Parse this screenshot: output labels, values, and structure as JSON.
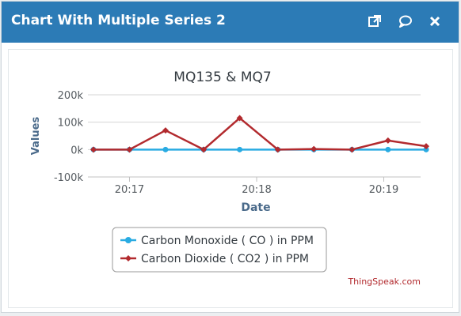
{
  "window": {
    "title": "Chart With Multiple Series 2"
  },
  "toolbar": {
    "icons": [
      "external-link-icon",
      "comment-icon",
      "close-icon"
    ]
  },
  "chart_data": {
    "type": "line",
    "title": "MQ135 & MQ7",
    "xlabel": "Date",
    "ylabel": "Values",
    "ylim": [
      -100000,
      200000
    ],
    "yticks": [
      -100000,
      0,
      100000,
      200000
    ],
    "ytick_labels": [
      "-100k",
      "0k",
      "100k",
      "200k"
    ],
    "xticks": [
      "20:17",
      "20:18",
      "20:19"
    ],
    "grid": true,
    "legend_position": "bottom-left",
    "series": [
      {
        "name": "Carbon Monoxide ( CO ) in PPM",
        "color": "#29abe2",
        "marker": "circle",
        "x": [
          "20:16:43",
          "20:17:00",
          "20:17:17",
          "20:17:35",
          "20:17:52",
          "20:18:10",
          "20:18:27",
          "20:18:45",
          "20:19:02",
          "20:19:20"
        ],
        "y": [
          0,
          0,
          0,
          0,
          0,
          0,
          0,
          0,
          0,
          0
        ]
      },
      {
        "name": "Carbon Dioxide ( CO2 ) in PPM",
        "color": "#b22a2e",
        "marker": "diamond",
        "x": [
          "20:16:43",
          "20:17:00",
          "20:17:17",
          "20:17:35",
          "20:17:52",
          "20:18:10",
          "20:18:27",
          "20:18:45",
          "20:19:02",
          "20:19:20"
        ],
        "y": [
          0,
          0,
          70000,
          0,
          115000,
          0,
          2000,
          0,
          33000,
          12000
        ]
      }
    ],
    "credit": "ThingSpeak.com"
  }
}
